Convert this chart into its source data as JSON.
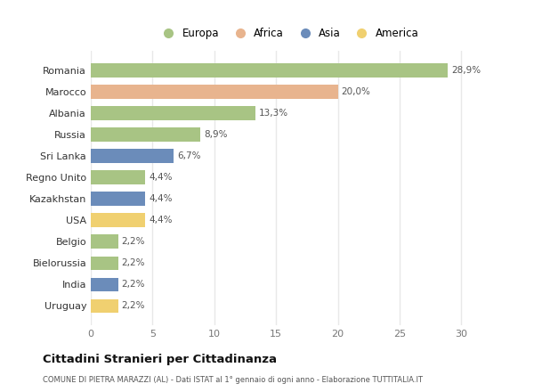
{
  "categories": [
    "Romania",
    "Marocco",
    "Albania",
    "Russia",
    "Sri Lanka",
    "Regno Unito",
    "Kazakhstan",
    "USA",
    "Belgio",
    "Bielorussia",
    "India",
    "Uruguay"
  ],
  "values": [
    28.9,
    20.0,
    13.3,
    8.9,
    6.7,
    4.4,
    4.4,
    4.4,
    2.2,
    2.2,
    2.2,
    2.2
  ],
  "labels": [
    "28,9%",
    "20,0%",
    "13,3%",
    "8,9%",
    "6,7%",
    "4,4%",
    "4,4%",
    "4,4%",
    "2,2%",
    "2,2%",
    "2,2%",
    "2,2%"
  ],
  "colors": [
    "#a8c484",
    "#e8b48e",
    "#a8c484",
    "#a8c484",
    "#6b8cba",
    "#a8c484",
    "#6b8cba",
    "#f0d070",
    "#a8c484",
    "#a8c484",
    "#6b8cba",
    "#f0d070"
  ],
  "legend_labels": [
    "Europa",
    "Africa",
    "Asia",
    "America"
  ],
  "legend_colors": [
    "#a8c484",
    "#e8b48e",
    "#6b8cba",
    "#f0d070"
  ],
  "xlim": [
    0,
    32
  ],
  "xticks": [
    0,
    5,
    10,
    15,
    20,
    25,
    30
  ],
  "title": "Cittadini Stranieri per Cittadinanza",
  "subtitle": "COMUNE DI PIETRA MARAZZI (AL) - Dati ISTAT al 1° gennaio di ogni anno - Elaborazione TUTTITALIA.IT",
  "bg_color": "#ffffff",
  "grid_color": "#e8e8e8",
  "bar_height": 0.65
}
